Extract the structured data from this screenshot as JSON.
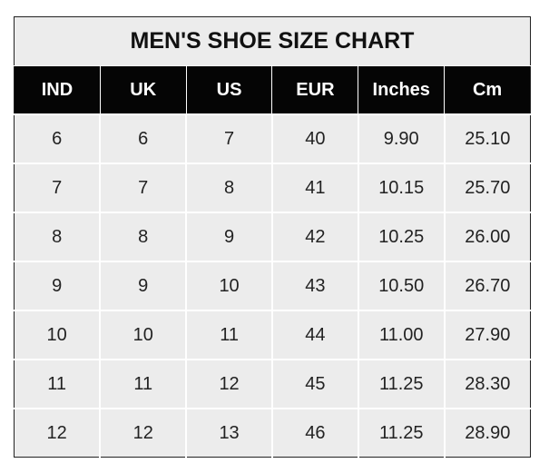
{
  "chart_data": {
    "type": "table",
    "title": "MEN'S SHOE SIZE CHART",
    "columns": [
      "IND",
      "UK",
      "US",
      "EUR",
      "Inches",
      "Cm"
    ],
    "rows": [
      [
        "6",
        "6",
        "7",
        "40",
        "9.90",
        "25.10"
      ],
      [
        "7",
        "7",
        "8",
        "41",
        "10.15",
        "25.70"
      ],
      [
        "8",
        "8",
        "9",
        "42",
        "10.25",
        "26.00"
      ],
      [
        "9",
        "9",
        "10",
        "43",
        "10.50",
        "26.70"
      ],
      [
        "10",
        "10",
        "11",
        "44",
        "11.00",
        "27.90"
      ],
      [
        "11",
        "11",
        "12",
        "45",
        "11.25",
        "28.30"
      ],
      [
        "12",
        "12",
        "13",
        "46",
        "11.25",
        "28.90"
      ]
    ]
  },
  "colors": {
    "header_bg": "#050505",
    "body_bg": "#ececec",
    "grid": "#ffffff"
  }
}
